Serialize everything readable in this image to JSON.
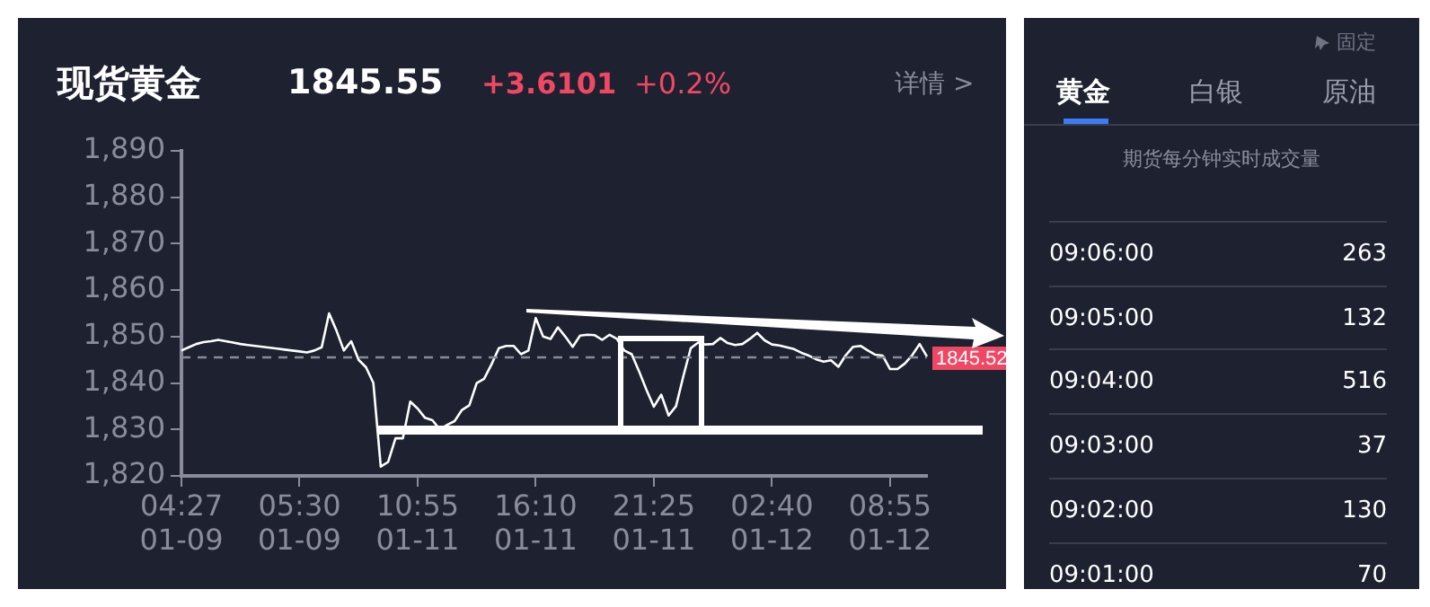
{
  "chart_data": [
    {
      "type": "line",
      "title": "现货黄金",
      "annotations": [
        "1845.55",
        "+3.6101",
        "+0.2%",
        "详情 >"
      ],
      "categories": [
        "04:27\n01-09",
        null,
        null,
        null,
        null,
        null,
        null,
        null,
        null,
        null,
        null,
        null,
        null,
        null,
        null,
        null,
        "05:30\n01-09",
        null,
        null,
        null,
        null,
        null,
        null,
        null,
        null,
        null,
        null,
        null,
        null,
        null,
        null,
        null,
        "10:55\n01-11",
        null,
        null,
        null,
        null,
        null,
        null,
        null,
        null,
        null,
        null,
        null,
        null,
        null,
        null,
        null,
        "16:10\n01-11",
        null,
        null,
        null,
        null,
        null,
        null,
        null,
        null,
        null,
        null,
        null,
        null,
        null,
        null,
        null,
        "21:25\n01-11",
        null,
        null,
        null,
        null,
        null,
        null,
        null,
        null,
        null,
        null,
        null,
        null,
        null,
        null,
        null,
        "02:40\n01-12",
        null,
        null,
        null,
        null,
        null,
        null,
        null,
        null,
        null,
        null,
        null,
        null,
        null,
        null,
        null,
        "08:55\n01-12",
        null,
        null,
        null,
        null,
        null
      ],
      "series": [
        {
          "color": "#ffffff",
          "values": [
            1847,
            1847.7,
            1848.4,
            1848.8,
            1849,
            1849.3,
            1849,
            1848.7,
            1848.4,
            1848.2,
            1848,
            1847.8,
            1847.6,
            1847.4,
            1847.2,
            1847,
            1846.8,
            1846.6,
            1847,
            1847.7,
            1855,
            1851.3,
            1847,
            1849,
            1845,
            1843.4,
            1840,
            1822,
            1823,
            1828.1,
            1828.1,
            1836,
            1834.5,
            1832.5,
            1832,
            1830,
            1831,
            1831.8,
            1834.2,
            1835.2,
            1840,
            1840.9,
            1844,
            1847.5,
            1848,
            1848,
            1846.2,
            1847,
            1854,
            1850,
            1849.5,
            1852,
            1850,
            1847.8,
            1850.2,
            1850.4,
            1850.3,
            1849.3,
            1850.4,
            1849.5,
            1847,
            1846.2,
            1842.5,
            1838.5,
            1834.9,
            1837.5,
            1833,
            1835,
            1841.5,
            1847.5,
            1848.7,
            1848.3,
            1848.4,
            1849.7,
            1848.6,
            1848.2,
            1848.4,
            1849.5,
            1850.8,
            1849.2,
            1848.3,
            1848.1,
            1847.7,
            1847.3,
            1846.5,
            1845.9,
            1845.1,
            1844.6,
            1844.9,
            1843.5,
            1846,
            1847.8,
            1848,
            1847,
            1846.1,
            1845.9,
            1843,
            1843,
            1844.2,
            1846,
            1848.4,
            1845.7
          ]
        }
      ],
      "ylim": [
        1820,
        1890
      ],
      "yticks": [
        {
          "value": 1820,
          "label": "1,820"
        },
        {
          "value": 1830,
          "label": "1,830"
        },
        {
          "value": 1840,
          "label": "1,840"
        },
        {
          "value": 1850,
          "label": "1,850"
        },
        {
          "value": 1860,
          "label": "1,860"
        },
        {
          "value": 1870,
          "label": "1,870"
        },
        {
          "value": 1880,
          "label": "1,880"
        },
        {
          "value": 1890,
          "label": "1,890"
        }
      ],
      "ref_lines": [
        {
          "axis": "y",
          "value": 1845.52,
          "label": "1845.52",
          "color": "#888b96",
          "line_style": "dashed"
        }
      ]
    },
    {
      "type": "other",
      "title": "期货每分钟实时成交量",
      "annotations": [
        "固定",
        "黄金",
        "白银",
        "原油",
        "09:06:00",
        "263",
        "09:05:00",
        "132",
        "09:04:00",
        "516",
        "09:03:00",
        "37",
        "09:02:00",
        "130",
        "09:01:00",
        "70"
      ]
    }
  ]
}
